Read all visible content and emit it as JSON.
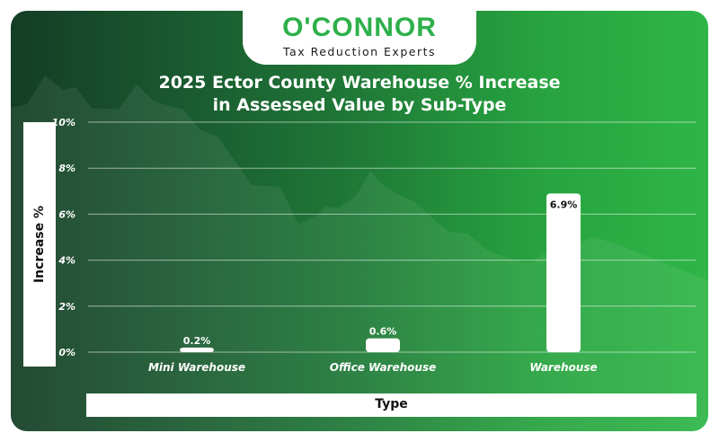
{
  "logo": {
    "name": "O'CONNOR",
    "tagline": "Tax Reduction Experts"
  },
  "colors": {
    "accent": "#2eb04b",
    "background_dark": "#143d25",
    "background_light": "#2fb647",
    "bar": "#ffffff"
  },
  "chart_data": {
    "type": "bar",
    "title_line1": "2025 Ector County Warehouse % Increase",
    "title_line2": "in Assessed Value by Sub-Type",
    "xlabel": "Type",
    "ylabel": "Increase %",
    "ylim": [
      0,
      10
    ],
    "yticks": [
      0,
      2,
      4,
      6,
      8,
      10
    ],
    "ytick_labels": [
      "0%",
      "2%",
      "4%",
      "6%",
      "8%",
      "10%"
    ],
    "categories": [
      "Mini Warehouse",
      "Office Warehouse",
      "Warehouse"
    ],
    "values": [
      0.2,
      0.6,
      6.9
    ],
    "value_labels": [
      "0.2%",
      "0.6%",
      "6.9%"
    ],
    "grid": true,
    "legend": "none"
  }
}
